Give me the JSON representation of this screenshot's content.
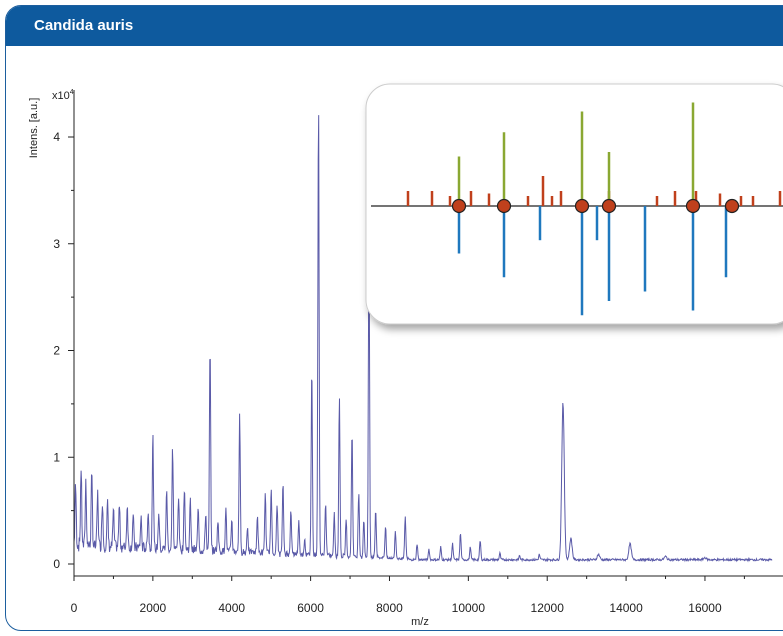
{
  "header": {
    "title": "Candida auris"
  },
  "colors": {
    "header_bg": "#0e5a9e",
    "border": "#1c5e9e",
    "spectrum": "#5a5aa8",
    "inset_red": "#c0401c",
    "inset_green": "#8aa832",
    "inset_blue": "#1f78be",
    "marker_fill": "#c0401c"
  },
  "chart_data": [
    {
      "type": "line",
      "title": "",
      "xlabel": "m/z",
      "ylabel": "Intens. [a.u.]",
      "y_multiplier": "x10",
      "y_multiplier_exp": "4",
      "xlim": [
        0,
        17700
      ],
      "ylim": [
        0,
        4.6
      ],
      "x_ticks": [
        "0",
        "2000",
        "4000",
        "6000",
        "8000",
        "10000",
        "12000",
        "14000",
        "16000"
      ],
      "x_tick_values": [
        0,
        2000,
        4000,
        6000,
        8000,
        10000,
        12000,
        14000,
        16000
      ],
      "y_ticks": [
        "0",
        "1",
        "2",
        "3",
        "4"
      ],
      "y_tick_values": [
        0,
        1,
        2,
        3,
        4
      ],
      "peaks": [
        {
          "x": 40,
          "y": 0.55
        },
        {
          "x": 180,
          "y": 0.72
        },
        {
          "x": 300,
          "y": 0.6
        },
        {
          "x": 450,
          "y": 0.65
        },
        {
          "x": 600,
          "y": 0.5
        },
        {
          "x": 720,
          "y": 0.42
        },
        {
          "x": 850,
          "y": 0.4
        },
        {
          "x": 1000,
          "y": 0.33
        },
        {
          "x": 1150,
          "y": 0.4
        },
        {
          "x": 1350,
          "y": 0.4
        },
        {
          "x": 1500,
          "y": 0.3
        },
        {
          "x": 1700,
          "y": 0.28
        },
        {
          "x": 1880,
          "y": 0.35
        },
        {
          "x": 2000,
          "y": 1.05
        },
        {
          "x": 2150,
          "y": 0.35
        },
        {
          "x": 2350,
          "y": 0.55
        },
        {
          "x": 2500,
          "y": 0.95
        },
        {
          "x": 2650,
          "y": 0.5
        },
        {
          "x": 2800,
          "y": 0.6
        },
        {
          "x": 2950,
          "y": 0.45
        },
        {
          "x": 3150,
          "y": 0.4
        },
        {
          "x": 3340,
          "y": 0.35
        },
        {
          "x": 3450,
          "y": 1.9
        },
        {
          "x": 3650,
          "y": 0.3
        },
        {
          "x": 3850,
          "y": 0.4
        },
        {
          "x": 4000,
          "y": 0.3
        },
        {
          "x": 4200,
          "y": 1.3
        },
        {
          "x": 4400,
          "y": 0.25
        },
        {
          "x": 4650,
          "y": 0.35
        },
        {
          "x": 4850,
          "y": 0.55
        },
        {
          "x": 5000,
          "y": 0.6
        },
        {
          "x": 5150,
          "y": 0.45
        },
        {
          "x": 5300,
          "y": 0.65
        },
        {
          "x": 5500,
          "y": 0.4
        },
        {
          "x": 5700,
          "y": 0.3
        },
        {
          "x": 5850,
          "y": 0.15
        },
        {
          "x": 6030,
          "y": 1.75
        },
        {
          "x": 6200,
          "y": 4.25
        },
        {
          "x": 6380,
          "y": 0.5
        },
        {
          "x": 6600,
          "y": 0.4
        },
        {
          "x": 6730,
          "y": 1.5
        },
        {
          "x": 6900,
          "y": 0.35
        },
        {
          "x": 7050,
          "y": 1.18
        },
        {
          "x": 7220,
          "y": 0.6
        },
        {
          "x": 7350,
          "y": 0.35
        },
        {
          "x": 7480,
          "y": 2.88
        },
        {
          "x": 7650,
          "y": 0.45
        },
        {
          "x": 7900,
          "y": 0.3
        },
        {
          "x": 8150,
          "y": 0.25
        },
        {
          "x": 8400,
          "y": 0.4
        },
        {
          "x": 8700,
          "y": 0.15
        },
        {
          "x": 9000,
          "y": 0.1
        },
        {
          "x": 9300,
          "y": 0.12
        },
        {
          "x": 9600,
          "y": 0.15
        },
        {
          "x": 9800,
          "y": 0.25
        },
        {
          "x": 10050,
          "y": 0.12
        },
        {
          "x": 10300,
          "y": 0.18
        },
        {
          "x": 10800,
          "y": 0.06
        },
        {
          "x": 11300,
          "y": 0.04
        },
        {
          "x": 11800,
          "y": 0.05
        },
        {
          "x": 12400,
          "y": 1.47
        },
        {
          "x": 12600,
          "y": 0.2
        },
        {
          "x": 13300,
          "y": 0.05
        },
        {
          "x": 14100,
          "y": 0.15
        },
        {
          "x": 15000,
          "y": 0.03
        },
        {
          "x": 16000,
          "y": 0.02
        }
      ]
    },
    {
      "type": "bar",
      "title": "",
      "description_free": true,
      "reference_up_red": [
        0.04,
        0.12,
        0.18,
        0.25,
        0.31,
        0.44,
        0.49,
        0.52,
        0.55,
        0.71,
        0.87,
        0.93,
        1.0,
        1.08,
        1.15,
        1.19,
        1.28,
        1.36,
        1.43
      ],
      "reference_up_red_heights": [
        0.3,
        0.3,
        0.2,
        0.3,
        0.25,
        0.2,
        0.6,
        0.2,
        0.3,
        0.3,
        0.2,
        0.3,
        0.3,
        0.25,
        0.2,
        0.2,
        0.3,
        0.2,
        0.3
      ],
      "matched_up_green": [
        0.21,
        0.36,
        0.62,
        0.71,
        0.99
      ],
      "matched_up_green_heights": [
        0.55,
        0.82,
        1.05,
        0.6,
        1.15
      ],
      "sample_down_blue": [
        0.21,
        0.36,
        0.48,
        0.62,
        0.67,
        0.71,
        0.83,
        0.99,
        1.1
      ],
      "sample_down_blue_heights": [
        0.5,
        0.75,
        0.36,
        1.15,
        0.36,
        1.0,
        0.9,
        1.1,
        0.75
      ],
      "match_markers": [
        0.21,
        0.36,
        0.62,
        0.71,
        0.99,
        1.12
      ]
    }
  ]
}
